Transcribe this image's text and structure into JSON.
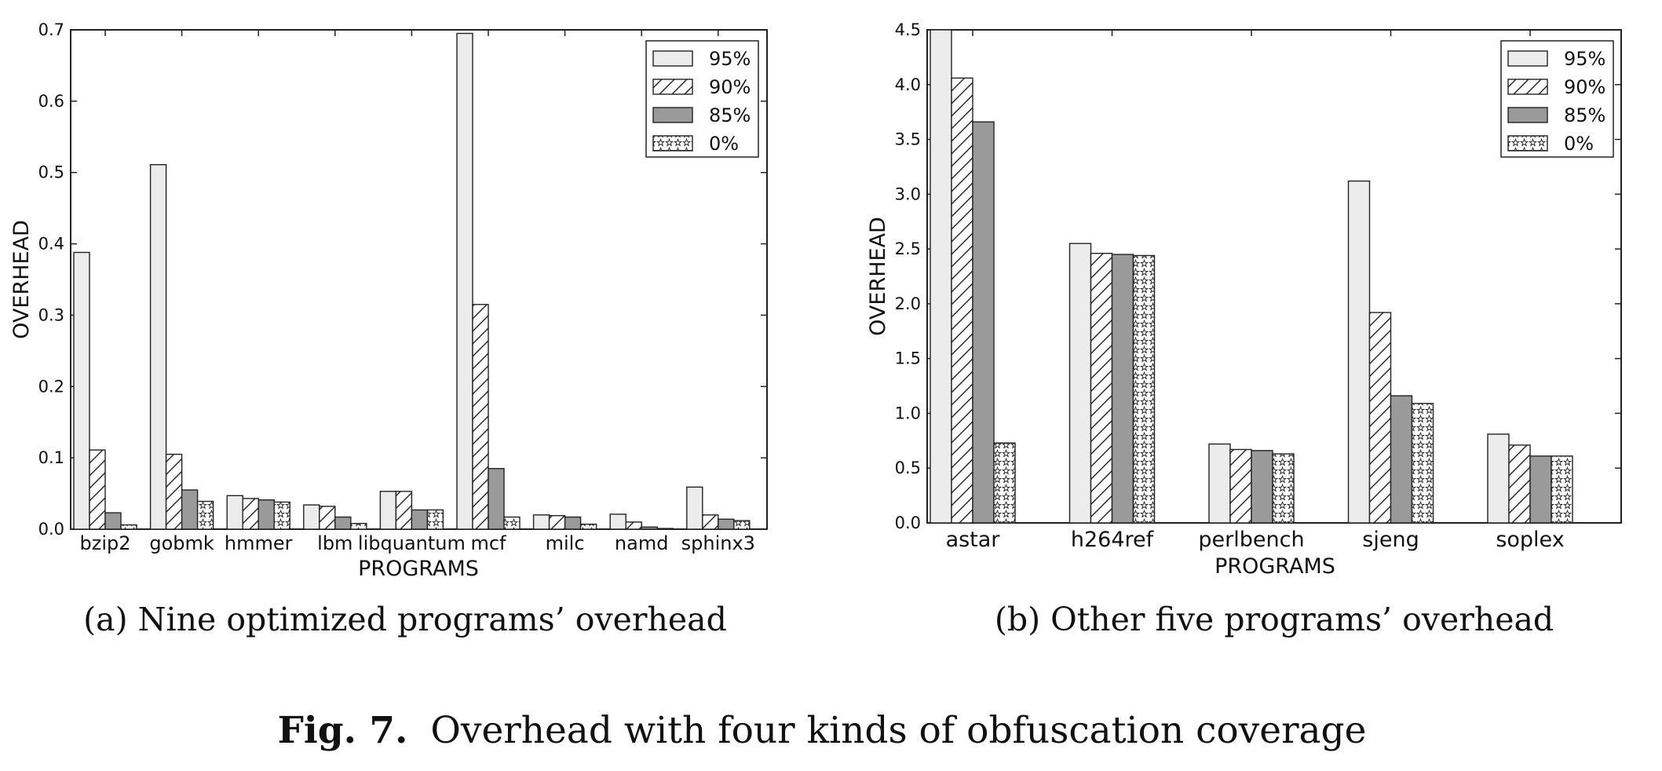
{
  "figure_caption": {
    "label": "Fig. 7.",
    "text": "Overhead with four kinds of obfuscation coverage"
  },
  "colors": {
    "s95": "#ececec",
    "s85": "#9a9a9a",
    "edge": "#222222",
    "hatch": "#222222"
  },
  "chart_data": [
    {
      "type": "bar",
      "caption": "(a) Nine optimized programs’ overhead",
      "xlabel": "PROGRAMS",
      "ylabel": "OVERHEAD",
      "ylim": [
        0,
        0.7
      ],
      "yticks": [
        "0.0",
        "0.1",
        "0.2",
        "0.3",
        "0.4",
        "0.5",
        "0.6",
        "0.7"
      ],
      "legend_position": "top-right",
      "grid": false,
      "categories": [
        "bzip2",
        "gobmk",
        "hmmer",
        "lbm",
        "libquantum",
        "mcf",
        "milc",
        "namd",
        "sphinx3"
      ],
      "series": [
        {
          "name": "95%",
          "pattern": "light",
          "values": [
            0.388,
            0.511,
            0.047,
            0.034,
            0.053,
            0.695,
            0.02,
            0.021,
            0.059
          ]
        },
        {
          "name": "90%",
          "pattern": "hatch",
          "values": [
            0.111,
            0.105,
            0.043,
            0.032,
            0.053,
            0.315,
            0.019,
            0.01,
            0.02
          ]
        },
        {
          "name": "85%",
          "pattern": "dark",
          "values": [
            0.023,
            0.055,
            0.041,
            0.017,
            0.027,
            0.085,
            0.017,
            0.003,
            0.014
          ]
        },
        {
          "name": "0%",
          "pattern": "stars",
          "values": [
            0.006,
            0.039,
            0.038,
            0.008,
            0.027,
            0.017,
            0.007,
            0.001,
            0.012
          ]
        }
      ]
    },
    {
      "type": "bar",
      "caption": "(b) Other five programs’ overhead",
      "xlabel": "PROGRAMS",
      "ylabel": "OVERHEAD",
      "ylim": [
        0,
        4.5
      ],
      "yticks": [
        "0.0",
        "0.5",
        "1.0",
        "1.5",
        "2.0",
        "2.5",
        "3.0",
        "3.5",
        "4.0",
        "4.5"
      ],
      "legend_position": "top-right",
      "grid": false,
      "categories": [
        "astar",
        "h264ref",
        "perlbench",
        "sjeng",
        "soplex"
      ],
      "series": [
        {
          "name": "95%",
          "pattern": "light",
          "values": [
            4.5,
            2.55,
            0.72,
            3.12,
            0.81
          ]
        },
        {
          "name": "90%",
          "pattern": "hatch",
          "values": [
            4.06,
            2.46,
            0.67,
            1.92,
            0.71
          ]
        },
        {
          "name": "85%",
          "pattern": "dark",
          "values": [
            3.66,
            2.45,
            0.66,
            1.16,
            0.61
          ]
        },
        {
          "name": "0%",
          "pattern": "stars",
          "values": [
            0.73,
            2.44,
            0.63,
            1.09,
            0.61
          ]
        }
      ]
    }
  ]
}
